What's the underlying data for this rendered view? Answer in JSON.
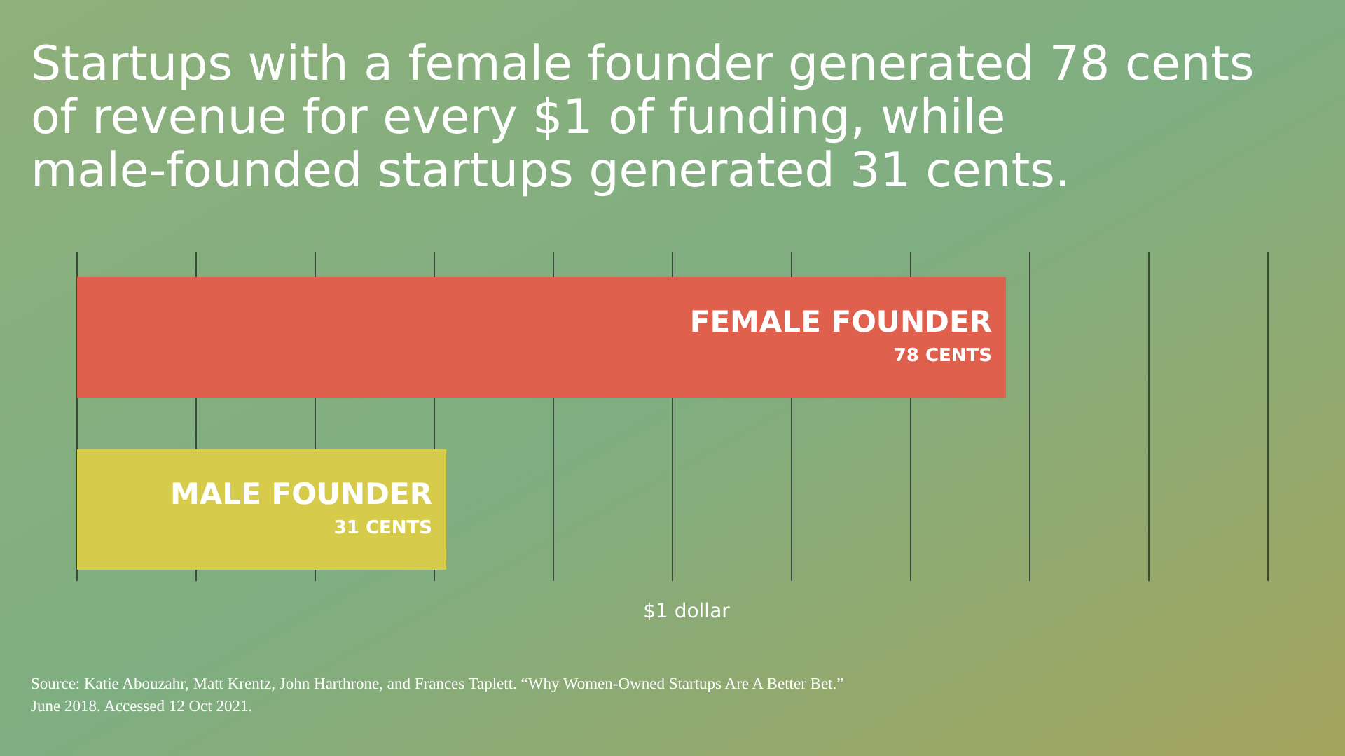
{
  "chart_data": {
    "type": "bar",
    "orientation": "horizontal",
    "title": "Startups with a female founder generated 78 cents of revenue for every $1 of funding, while male-founded startups generated 31 cents.",
    "categories": [
      "FEMALE FOUNDER",
      "MALE FOUNDER"
    ],
    "values": [
      78,
      31
    ],
    "colors": [
      "#e0604e",
      "#d6cb4a"
    ],
    "value_labels": [
      "78 CENTS",
      "31 CENTS"
    ],
    "xlabel": "$1 dollar",
    "xlim": [
      0,
      100
    ],
    "grid": "x",
    "annotations": [
      "Source: Katie Abouzahr, Matt Krentz, John Harthrone, and Frances Taplett. “Why Women-Owned Startups Are A Better Bet.” June 2018. Accessed 12 Oct 2021."
    ]
  }
}
